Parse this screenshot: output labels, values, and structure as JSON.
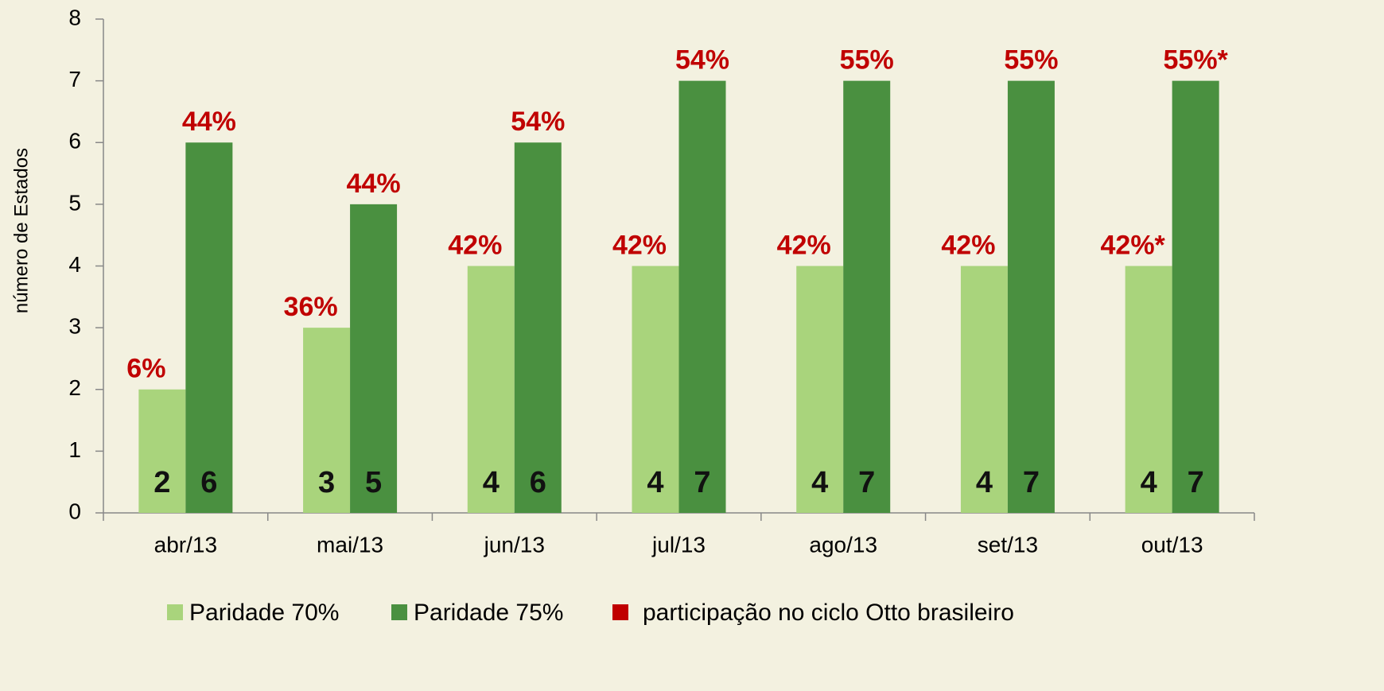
{
  "chart_data": {
    "type": "bar",
    "y_label": "número de Estados",
    "categories": [
      "abr/13",
      "mai/13",
      "jun/13",
      "jul/13",
      "ago/13",
      "set/13",
      "out/13"
    ],
    "series": [
      {
        "name": "Paridade 70%",
        "color": "#a9d47c",
        "values": [
          2,
          3,
          4,
          4,
          4,
          4,
          4
        ],
        "share_labels": [
          "6%",
          "36%",
          "42%",
          "42%",
          "42%",
          "42%",
          "42%*"
        ]
      },
      {
        "name": "Paridade 75%",
        "color": "#4a9040",
        "values": [
          6,
          5,
          6,
          7,
          7,
          7,
          7
        ],
        "share_labels": [
          "44%",
          "44%",
          "54%",
          "54%",
          "55%",
          "55%",
          "55%*"
        ]
      }
    ],
    "share_legend": {
      "name": "participação no ciclo Otto brasileiro",
      "color": "#c00000"
    },
    "ylim": [
      0,
      8
    ],
    "yticks": [
      0,
      1,
      2,
      3,
      4,
      5,
      6,
      7,
      8
    ],
    "legend": "bottom"
  }
}
